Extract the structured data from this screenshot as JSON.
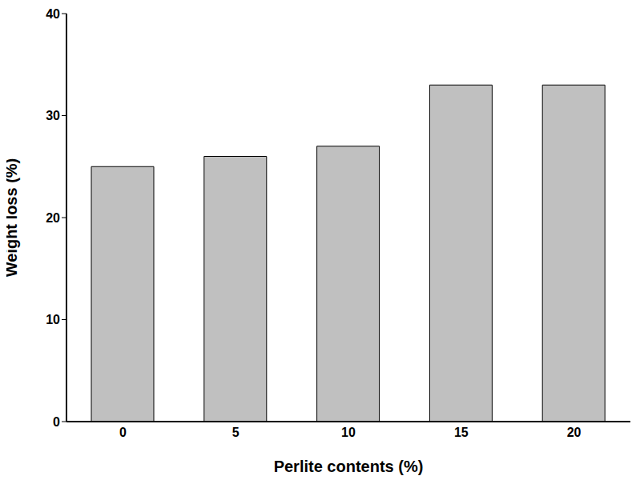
{
  "chart_data": {
    "type": "bar",
    "categories": [
      "0",
      "5",
      "10",
      "15",
      "20"
    ],
    "values": [
      25,
      26,
      27,
      33,
      33
    ],
    "color": "#c0c0c0",
    "xlabel": "Perlite contents (%)",
    "ylabel": "Weight loss (%)",
    "ylim": [
      0,
      40
    ],
    "yticks": [
      0,
      10,
      20,
      30,
      40
    ],
    "grid": false
  }
}
